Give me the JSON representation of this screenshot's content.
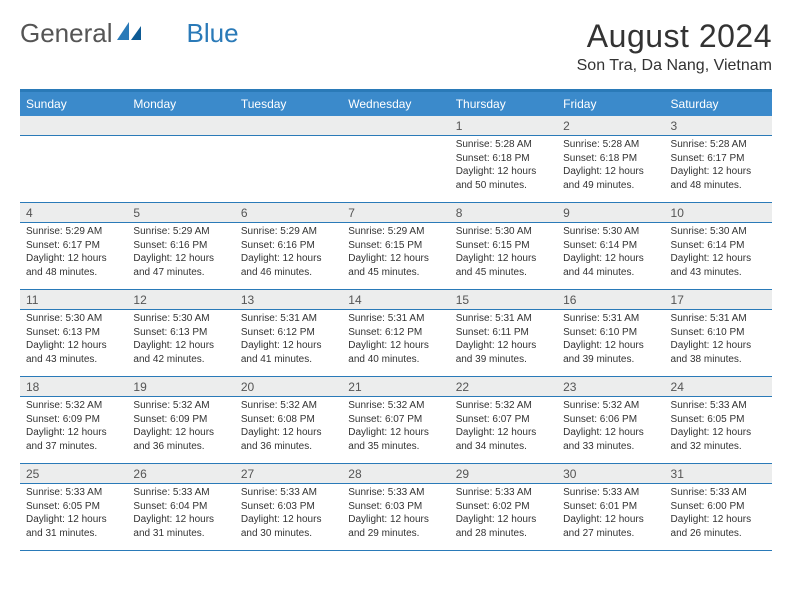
{
  "logo": {
    "word1": "General",
    "word2": "Blue"
  },
  "title": {
    "month": "August 2024",
    "location": "Son Tra, Da Nang, Vietnam"
  },
  "colors": {
    "header_bg": "#3b8acb",
    "line": "#2a7ab8",
    "daystrip_bg": "#eceded",
    "text": "#333333"
  },
  "day_headers": [
    "Sunday",
    "Monday",
    "Tuesday",
    "Wednesday",
    "Thursday",
    "Friday",
    "Saturday"
  ],
  "weeks": [
    {
      "numbers": [
        "",
        "",
        "",
        "",
        "1",
        "2",
        "3"
      ],
      "cells": [
        "",
        "",
        "",
        "",
        "Sunrise: 5:28 AM\nSunset: 6:18 PM\nDaylight: 12 hours and 50 minutes.",
        "Sunrise: 5:28 AM\nSunset: 6:18 PM\nDaylight: 12 hours and 49 minutes.",
        "Sunrise: 5:28 AM\nSunset: 6:17 PM\nDaylight: 12 hours and 48 minutes."
      ]
    },
    {
      "numbers": [
        "4",
        "5",
        "6",
        "7",
        "8",
        "9",
        "10"
      ],
      "cells": [
        "Sunrise: 5:29 AM\nSunset: 6:17 PM\nDaylight: 12 hours and 48 minutes.",
        "Sunrise: 5:29 AM\nSunset: 6:16 PM\nDaylight: 12 hours and 47 minutes.",
        "Sunrise: 5:29 AM\nSunset: 6:16 PM\nDaylight: 12 hours and 46 minutes.",
        "Sunrise: 5:29 AM\nSunset: 6:15 PM\nDaylight: 12 hours and 45 minutes.",
        "Sunrise: 5:30 AM\nSunset: 6:15 PM\nDaylight: 12 hours and 45 minutes.",
        "Sunrise: 5:30 AM\nSunset: 6:14 PM\nDaylight: 12 hours and 44 minutes.",
        "Sunrise: 5:30 AM\nSunset: 6:14 PM\nDaylight: 12 hours and 43 minutes."
      ]
    },
    {
      "numbers": [
        "11",
        "12",
        "13",
        "14",
        "15",
        "16",
        "17"
      ],
      "cells": [
        "Sunrise: 5:30 AM\nSunset: 6:13 PM\nDaylight: 12 hours and 43 minutes.",
        "Sunrise: 5:30 AM\nSunset: 6:13 PM\nDaylight: 12 hours and 42 minutes.",
        "Sunrise: 5:31 AM\nSunset: 6:12 PM\nDaylight: 12 hours and 41 minutes.",
        "Sunrise: 5:31 AM\nSunset: 6:12 PM\nDaylight: 12 hours and 40 minutes.",
        "Sunrise: 5:31 AM\nSunset: 6:11 PM\nDaylight: 12 hours and 39 minutes.",
        "Sunrise: 5:31 AM\nSunset: 6:10 PM\nDaylight: 12 hours and 39 minutes.",
        "Sunrise: 5:31 AM\nSunset: 6:10 PM\nDaylight: 12 hours and 38 minutes."
      ]
    },
    {
      "numbers": [
        "18",
        "19",
        "20",
        "21",
        "22",
        "23",
        "24"
      ],
      "cells": [
        "Sunrise: 5:32 AM\nSunset: 6:09 PM\nDaylight: 12 hours and 37 minutes.",
        "Sunrise: 5:32 AM\nSunset: 6:09 PM\nDaylight: 12 hours and 36 minutes.",
        "Sunrise: 5:32 AM\nSunset: 6:08 PM\nDaylight: 12 hours and 36 minutes.",
        "Sunrise: 5:32 AM\nSunset: 6:07 PM\nDaylight: 12 hours and 35 minutes.",
        "Sunrise: 5:32 AM\nSunset: 6:07 PM\nDaylight: 12 hours and 34 minutes.",
        "Sunrise: 5:32 AM\nSunset: 6:06 PM\nDaylight: 12 hours and 33 minutes.",
        "Sunrise: 5:33 AM\nSunset: 6:05 PM\nDaylight: 12 hours and 32 minutes."
      ]
    },
    {
      "numbers": [
        "25",
        "26",
        "27",
        "28",
        "29",
        "30",
        "31"
      ],
      "cells": [
        "Sunrise: 5:33 AM\nSunset: 6:05 PM\nDaylight: 12 hours and 31 minutes.",
        "Sunrise: 5:33 AM\nSunset: 6:04 PM\nDaylight: 12 hours and 31 minutes.",
        "Sunrise: 5:33 AM\nSunset: 6:03 PM\nDaylight: 12 hours and 30 minutes.",
        "Sunrise: 5:33 AM\nSunset: 6:03 PM\nDaylight: 12 hours and 29 minutes.",
        "Sunrise: 5:33 AM\nSunset: 6:02 PM\nDaylight: 12 hours and 28 minutes.",
        "Sunrise: 5:33 AM\nSunset: 6:01 PM\nDaylight: 12 hours and 27 minutes.",
        "Sunrise: 5:33 AM\nSunset: 6:00 PM\nDaylight: 12 hours and 26 minutes."
      ]
    }
  ]
}
